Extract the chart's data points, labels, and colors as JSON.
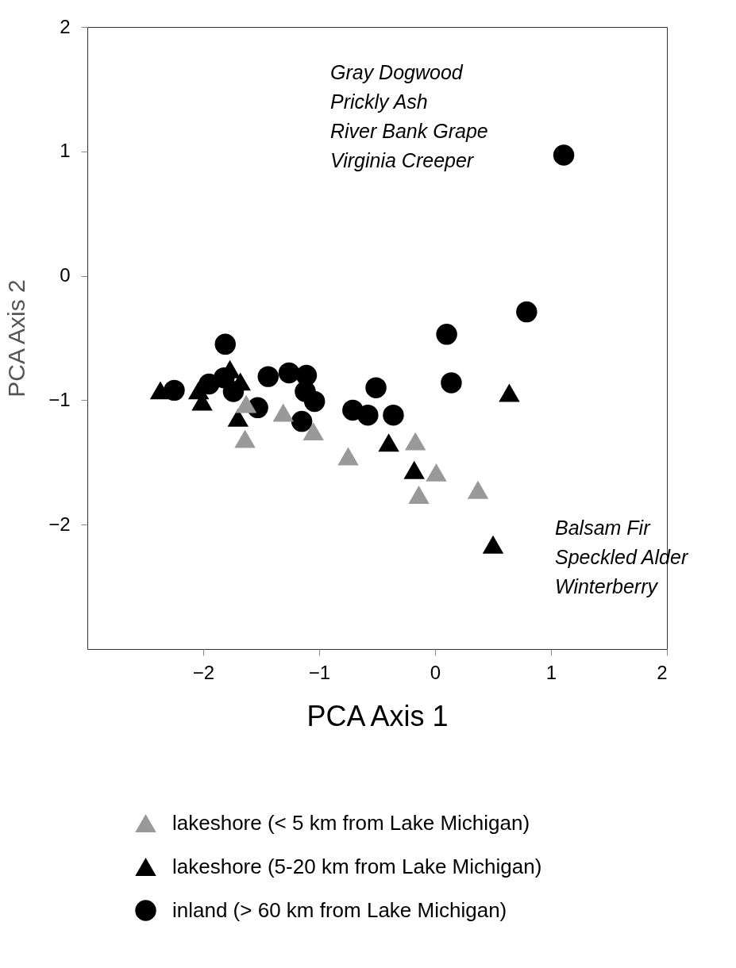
{
  "chart_data": {
    "type": "scatter",
    "xlabel": "PCA Axis 1",
    "ylabel": "PCA Axis 2",
    "xlim": [
      -3,
      2
    ],
    "ylim": [
      -3,
      2
    ],
    "xticks": [
      -2,
      -1,
      0,
      1,
      2
    ],
    "yticks": [
      -2,
      -1,
      0,
      1,
      2
    ],
    "grid": false,
    "legend": "bottom",
    "series": [
      {
        "name": "lakeshore (< 5 km from Lake Michigan)",
        "color": "#999999",
        "marker": "triangle",
        "x": [
          -1.63,
          -1.64,
          -1.31,
          -1.05,
          -0.75,
          -0.17,
          0.01,
          -0.14,
          0.37
        ],
        "values": [
          -1.03,
          -1.31,
          -1.1,
          -1.25,
          -1.45,
          -1.33,
          -1.58,
          -1.76,
          -1.72
        ]
      },
      {
        "name": "lakeshore (5-20 km from Lake Michigan)",
        "color": "#000000",
        "marker": "triangle",
        "x": [
          -2.37,
          -2.04,
          -2.01,
          -1.77,
          -1.68,
          -1.7,
          -0.4,
          -0.18,
          0.64,
          0.5
        ],
        "values": [
          -0.92,
          -0.92,
          -1.01,
          -0.75,
          -0.85,
          -1.14,
          -1.34,
          -1.56,
          -0.94,
          -2.16
        ]
      },
      {
        "name": "inland (> 60 km from Lake Michigan)",
        "color": "#000000",
        "marker": "circle",
        "x": [
          1.11,
          0.79,
          0.1,
          0.14,
          -0.51,
          -0.36,
          -0.71,
          -0.58,
          -1.81,
          -2.25,
          -1.95,
          -1.82,
          -1.74,
          -1.53,
          -1.44,
          -1.26,
          -1.11,
          -1.12,
          -1.04,
          -1.15
        ],
        "values": [
          0.97,
          -0.29,
          -0.47,
          -0.86,
          -0.9,
          -1.12,
          -1.08,
          -1.12,
          -0.55,
          -0.92,
          -0.87,
          -0.82,
          -0.93,
          -1.06,
          -0.81,
          -0.78,
          -0.8,
          -0.93,
          -1.01,
          -1.17
        ]
      }
    ],
    "annotations": [
      "Gray Dogwood\nPrickly Ash\nRiver Bank Grape\nVirginia Creeper",
      "Balsam Fir\nSpeckled Alder\nWinterberry"
    ]
  }
}
